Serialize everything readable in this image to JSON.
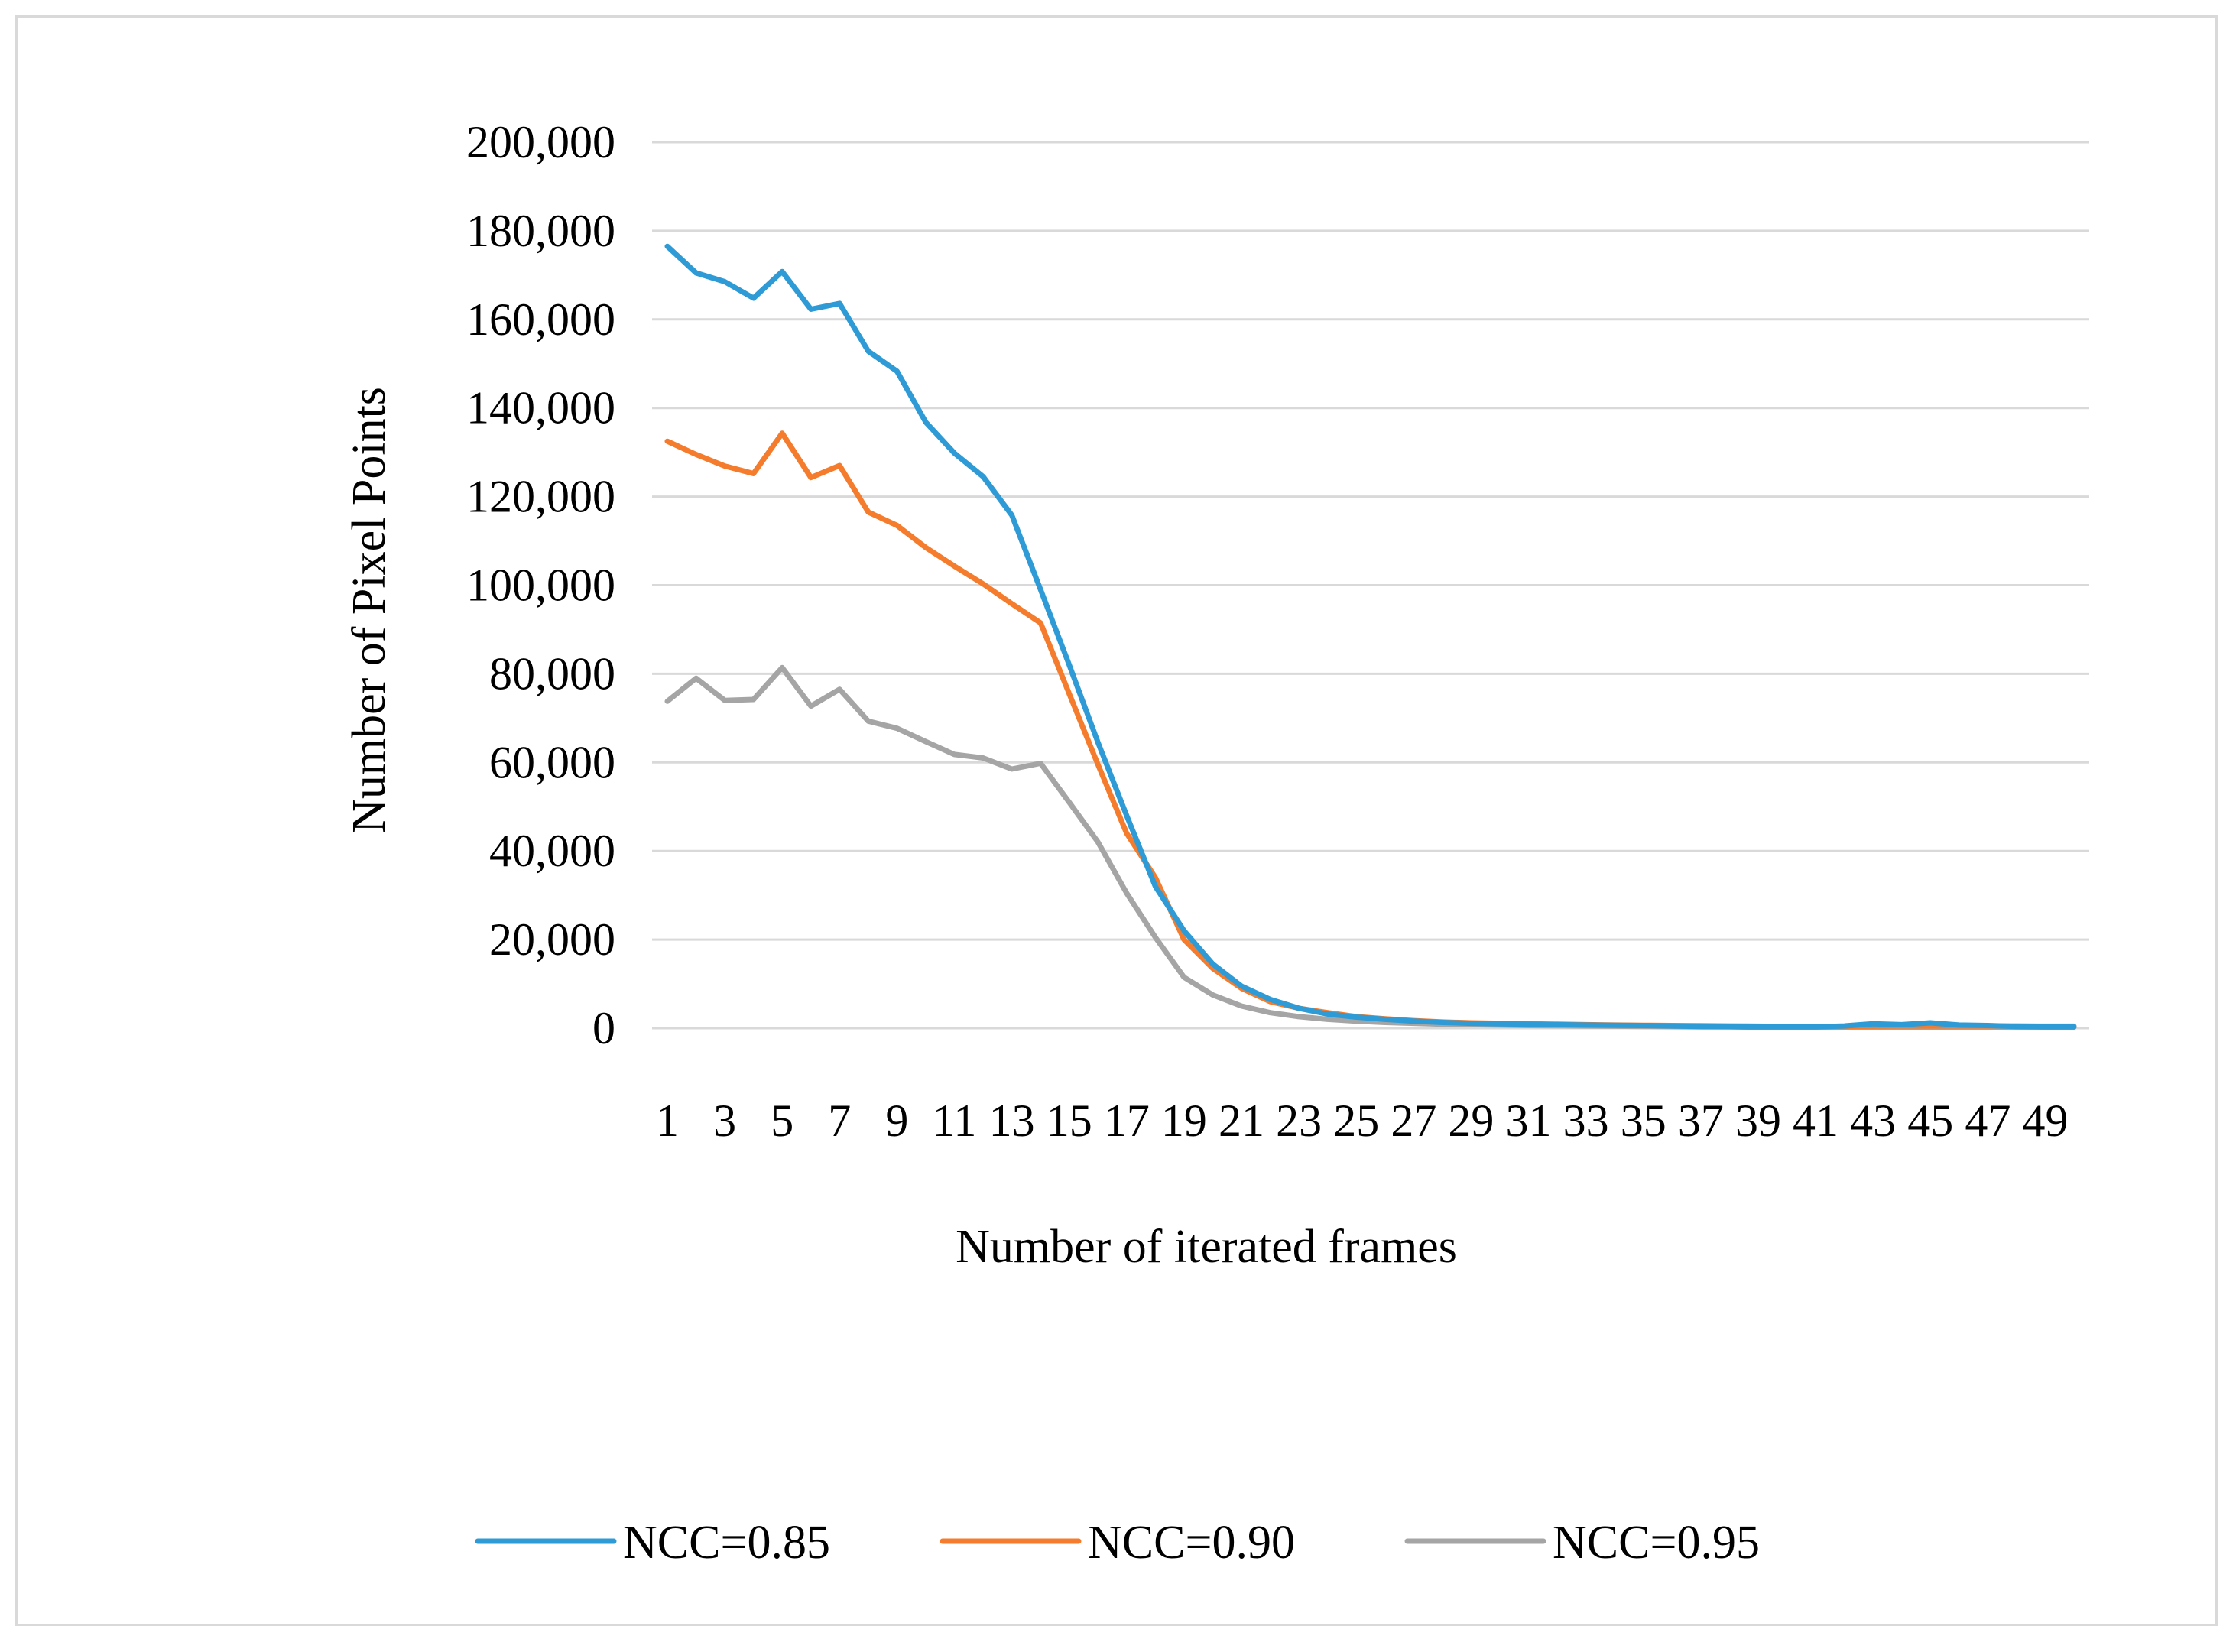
{
  "chart_data": {
    "type": "line",
    "title": "",
    "xlabel": "Number of iterated frames",
    "ylabel": "Number of Pixel Points",
    "ylim": [
      0,
      200000
    ],
    "yticks": [
      "0",
      "20,000",
      "40,000",
      "60,000",
      "80,000",
      "100,000",
      "120,000",
      "140,000",
      "160,000",
      "180,000",
      "200,000"
    ],
    "x": [
      1,
      2,
      3,
      4,
      5,
      6,
      7,
      8,
      9,
      10,
      11,
      12,
      13,
      14,
      15,
      16,
      17,
      18,
      19,
      20,
      21,
      22,
      23,
      24,
      25,
      26,
      27,
      28,
      29,
      30,
      31,
      32,
      33,
      34,
      35,
      36,
      37,
      38,
      39,
      40,
      41,
      42,
      43,
      44,
      45,
      46,
      47,
      48,
      49,
      50
    ],
    "xtick_labels": [
      "1",
      "3",
      "5",
      "7",
      "9",
      "11",
      "13",
      "15",
      "17",
      "19",
      "21",
      "23",
      "25",
      "27",
      "29",
      "31",
      "33",
      "35",
      "37",
      "39",
      "41",
      "43",
      "45",
      "47",
      "49"
    ],
    "grid": "horizontal",
    "legend_position": "bottom",
    "series": [
      {
        "name": "NCC=0.85",
        "color": "#2e9bd6",
        "values": [
          176500,
          170500,
          168500,
          164800,
          170800,
          162300,
          163600,
          152800,
          148300,
          136800,
          129800,
          124500,
          115800,
          99000,
          82000,
          64500,
          48000,
          32000,
          22000,
          14500,
          9500,
          6500,
          4500,
          3200,
          2500,
          2000,
          1600,
          1300,
          1100,
          1000,
          900,
          800,
          700,
          650,
          600,
          500,
          400,
          350,
          300,
          300,
          300,
          500,
          1000,
          800,
          1200,
          700,
          600,
          400,
          300,
          300
        ]
      },
      {
        "name": "NCC=0.90",
        "color": "#f47c2c",
        "values": [
          132500,
          129500,
          126900,
          125200,
          134300,
          124300,
          127000,
          116500,
          113500,
          108500,
          104300,
          100300,
          95800,
          91500,
          75500,
          59500,
          44000,
          34000,
          20000,
          13500,
          9000,
          6000,
          4500,
          3500,
          2600,
          2100,
          1700,
          1400,
          1200,
          1100,
          1000,
          900,
          800,
          700,
          650,
          600,
          550,
          500,
          450,
          400,
          400,
          400,
          450,
          500,
          500,
          500,
          500,
          500,
          450,
          450
        ]
      },
      {
        "name": "NCC=0.95",
        "color": "#a5a5a5",
        "values": [
          73800,
          79000,
          74000,
          74200,
          81400,
          72700,
          76500,
          69300,
          67700,
          64700,
          61800,
          61000,
          58500,
          59800,
          51000,
          42000,
          30500,
          20500,
          11500,
          7500,
          5000,
          3500,
          2600,
          2000,
          1600,
          1300,
          1100,
          900,
          800,
          700,
          600,
          550,
          500,
          450,
          400,
          350,
          300,
          300,
          250,
          250,
          250,
          250,
          250,
          250,
          250,
          250,
          250,
          250,
          250,
          250
        ]
      }
    ]
  }
}
